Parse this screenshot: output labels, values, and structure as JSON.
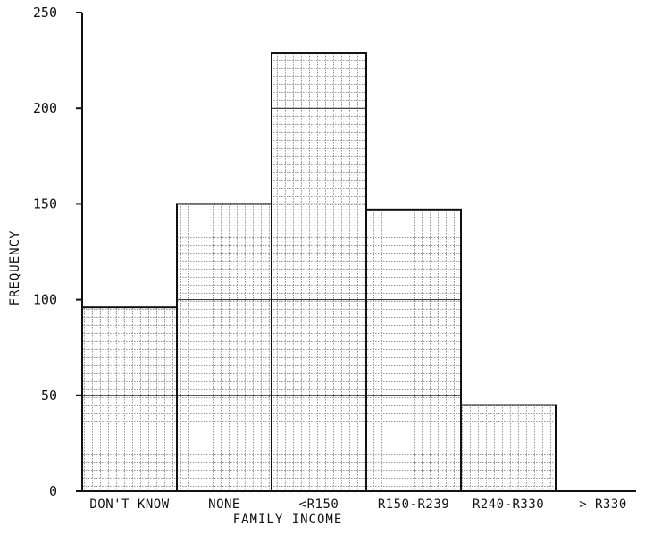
{
  "chart_data": {
    "type": "bar",
    "title": "",
    "xlabel": "FAMILY INCOME",
    "ylabel": "FREQUENCY",
    "categories": [
      "DON'T KNOW",
      "NONE",
      "<R150",
      "R150-R239",
      "R240-R330",
      "> R330"
    ],
    "values": [
      96,
      150,
      229,
      147,
      45,
      0
    ],
    "ylim": [
      0,
      250
    ],
    "yticks": [
      "0",
      "50",
      "100",
      "150",
      "200",
      "250"
    ],
    "grid": false,
    "legend": "none"
  }
}
